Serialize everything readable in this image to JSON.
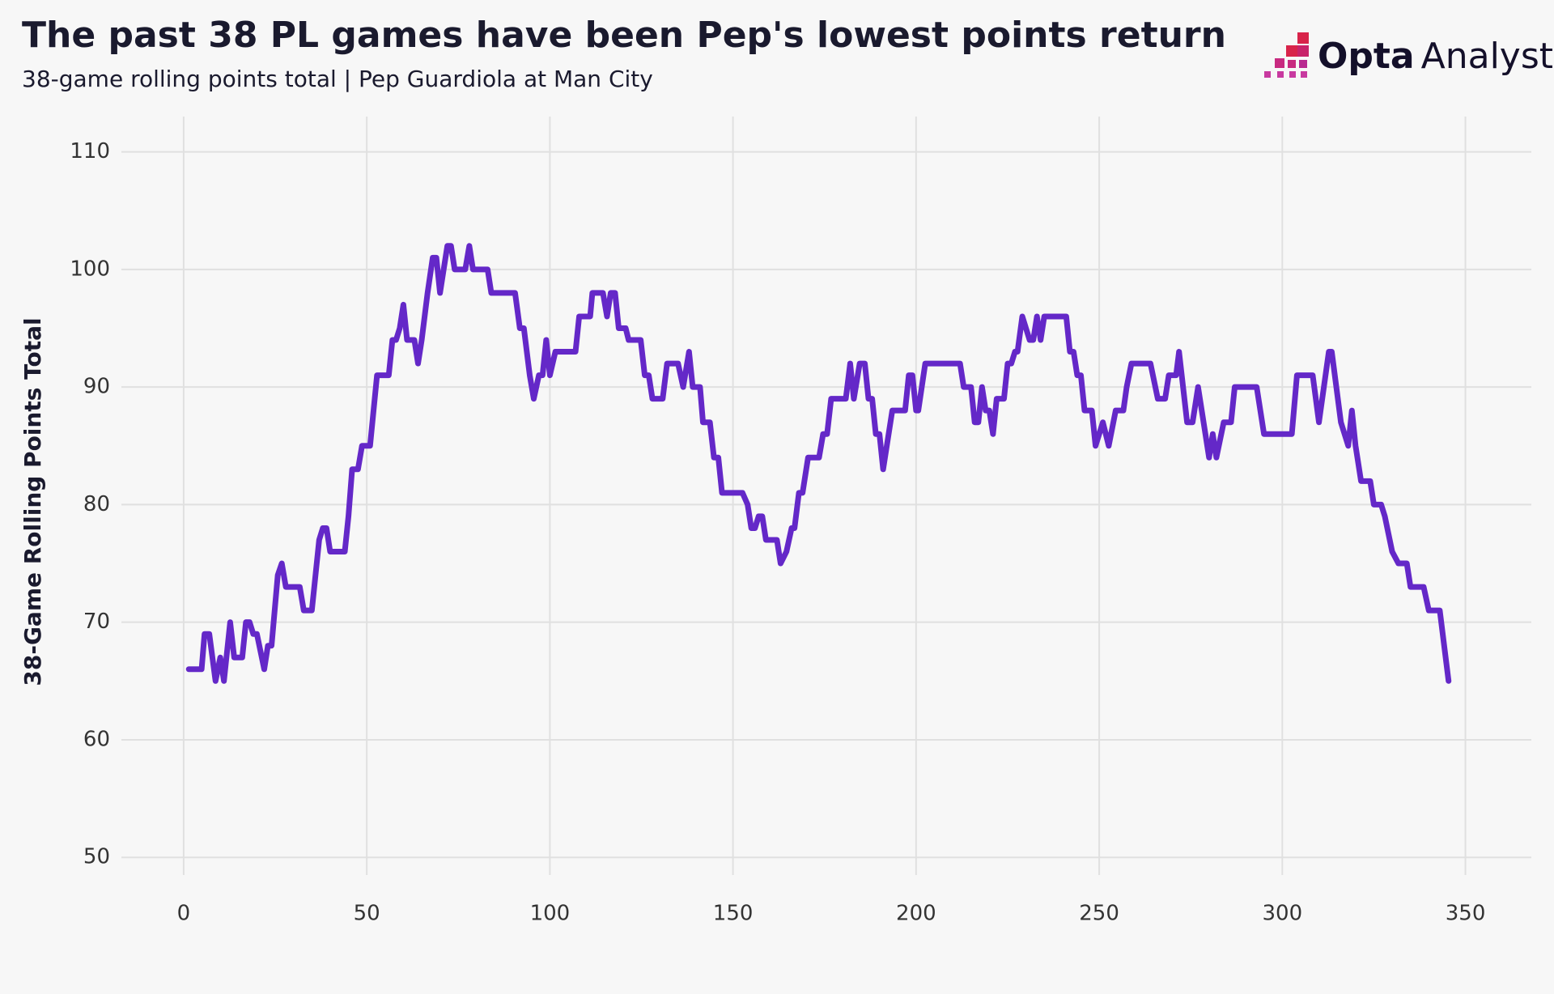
{
  "chart_data": {
    "type": "line",
    "title": "The past 38 PL games have been Pep's lowest points return",
    "subtitle": "38-game rolling points total | Pep Guardiola at Man City",
    "y_label": "38-Game Rolling Points Total",
    "x": [
      1.4,
      4.9,
      5.7,
      7,
      8.7,
      10,
      11,
      12.7,
      13.8,
      16,
      17,
      18,
      19,
      20,
      22,
      23,
      24,
      25.7,
      26.8,
      27.9,
      31.7,
      32.8,
      35,
      36,
      37,
      38,
      39,
      40,
      44,
      45,
      46,
      47.6,
      48.7,
      50.9,
      52.8,
      56,
      57,
      58,
      59,
      60,
      61,
      63,
      64,
      65,
      66.6,
      68,
      69,
      70,
      71,
      72,
      73,
      74,
      76.9,
      78,
      79,
      83,
      84,
      90.5,
      91.8,
      92.9,
      94.5,
      95.6,
      97,
      98,
      99,
      100,
      101.5,
      107,
      108,
      111,
      111.6,
      114.5,
      115.6,
      116.6,
      117.8,
      118.8,
      120.7,
      121.5,
      124.8,
      125.9,
      127,
      128,
      130.8,
      132,
      135,
      136.4,
      138,
      139,
      141,
      141.8,
      143.7,
      144.8,
      146,
      147,
      152.6,
      154,
      155,
      156,
      157,
      158,
      159,
      162,
      163,
      164.6,
      166,
      166.8,
      168,
      169,
      170.5,
      173.5,
      174.6,
      175.7,
      176.8,
      180.8,
      182,
      183,
      184.6,
      186,
      187,
      188,
      189,
      190,
      191,
      192.5,
      193.5,
      197,
      198,
      199,
      200,
      200.6,
      202.5,
      212,
      213,
      215,
      216,
      217,
      218,
      219,
      220,
      221,
      222,
      224,
      225,
      226,
      227,
      227.7,
      229,
      231,
      232,
      233,
      234,
      235,
      241,
      242,
      243,
      244,
      245,
      246,
      248,
      249,
      251,
      252.6,
      254.5,
      256.6,
      257.5,
      258.8,
      264,
      266,
      268,
      269,
      271,
      271.8,
      274,
      275.5,
      277,
      279,
      280,
      281,
      282,
      284,
      286,
      287,
      293,
      295,
      302.6,
      304,
      308.3,
      310,
      312.7,
      313.5,
      316,
      318,
      319,
      320,
      321.5,
      324,
      325,
      327,
      328,
      330,
      331.7,
      334,
      335,
      338.6,
      340,
      343,
      345.4
    ],
    "series": [
      {
        "name": "Rolling points",
        "color": "#6428c8",
        "values": [
          66,
          66,
          69,
          69,
          65,
          67,
          65,
          70,
          67,
          67,
          70,
          70,
          69,
          69,
          66,
          68,
          68,
          74,
          75,
          73,
          73,
          71,
          71,
          74,
          77,
          78,
          78,
          76,
          76,
          79,
          83,
          83,
          85,
          85,
          91,
          91,
          94,
          94,
          95,
          97,
          94,
          94,
          92,
          94,
          98,
          101,
          101,
          98,
          100,
          102,
          102,
          100,
          100,
          102,
          100,
          100,
          98,
          98,
          95,
          95,
          91,
          89,
          91,
          91,
          94,
          91,
          93,
          93,
          96,
          96,
          98,
          98,
          96,
          98,
          98,
          95,
          95,
          94,
          94,
          91,
          91,
          89,
          89,
          92,
          92,
          90,
          93,
          90,
          90,
          87,
          87,
          84,
          84,
          81,
          81,
          80,
          78,
          78,
          79,
          79,
          77,
          77,
          75,
          76,
          78,
          78,
          81,
          81,
          84,
          84,
          86,
          86,
          89,
          89,
          92,
          89,
          92,
          92,
          89,
          89,
          86,
          86,
          83,
          86,
          88,
          88,
          91,
          91,
          88,
          88,
          92,
          92,
          90,
          90,
          87,
          87,
          90,
          88,
          88,
          86,
          89,
          89,
          92,
          92,
          93,
          93,
          96,
          94,
          94,
          96,
          94,
          96,
          96,
          93,
          93,
          91,
          91,
          88,
          88,
          85,
          87,
          85,
          88,
          88,
          90,
          92,
          92,
          89,
          89,
          91,
          91,
          93,
          87,
          87,
          90,
          86,
          84,
          86,
          84,
          87,
          87,
          90,
          90,
          86,
          86,
          91,
          91,
          87,
          93,
          93,
          87,
          85,
          88,
          85,
          82,
          82,
          80,
          80,
          79,
          76,
          75,
          75,
          73,
          73,
          71,
          71,
          65
        ]
      }
    ],
    "xlim": [
      -17,
      368
    ],
    "ylim": [
      48.5,
      113
    ],
    "xticks": [
      0,
      50,
      100,
      150,
      200,
      250,
      300,
      350
    ],
    "yticks": [
      50,
      60,
      70,
      80,
      90,
      100,
      110
    ],
    "grid": true
  },
  "brand": {
    "bold": "Opta",
    "light": "Analyst"
  }
}
